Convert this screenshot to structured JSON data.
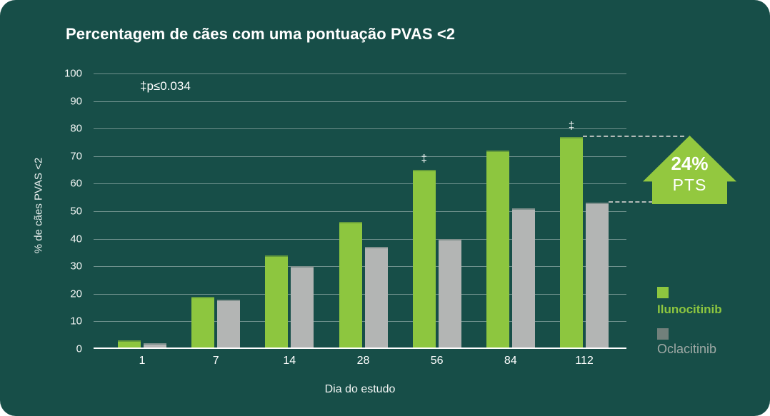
{
  "title": "Percentagem de cães com uma pontuação PVAS <2",
  "chart_data": {
    "type": "bar",
    "title": "Percentagem de cães com uma pontuação PVAS <2",
    "xlabel": "Dia do estudo",
    "ylabel": "% de cães PVAS <2",
    "categories": [
      "1",
      "7",
      "14",
      "28",
      "56",
      "84",
      "112"
    ],
    "series": [
      {
        "name": "Ilunocitinib",
        "color": "#8dc63f",
        "values": [
          3,
          19,
          34,
          46,
          65,
          72,
          77
        ],
        "significant": [
          false,
          false,
          false,
          false,
          true,
          false,
          true
        ]
      },
      {
        "name": "Oclacitinib",
        "color": "#b3b5b4",
        "values": [
          2,
          18,
          30,
          37,
          40,
          51,
          53
        ],
        "significant": [
          false,
          false,
          false,
          false,
          false,
          false,
          false
        ]
      }
    ],
    "ylim": [
      0,
      100
    ],
    "ytick_step": 10,
    "grid": "horizontal",
    "sig_marker": "‡",
    "annotation": "‡p≤0.034",
    "legend_position": "right"
  },
  "callout": {
    "value": "24%",
    "unit": "PTS",
    "color": "#93c83f"
  },
  "legend": {
    "items": [
      {
        "label": "Ilunocitinib",
        "color": "#8dc63f",
        "text_color": "#8dc63f"
      },
      {
        "label": "Oclacitinib",
        "color": "#71807b",
        "text_color": "#9fa9a5"
      }
    ]
  },
  "colors": {
    "background": "#174e48",
    "axis_line": "#ffffff",
    "gridline": "rgba(255,255,255,0.38)",
    "dashed_line": "#b2bab7",
    "text": "#ffffff"
  }
}
